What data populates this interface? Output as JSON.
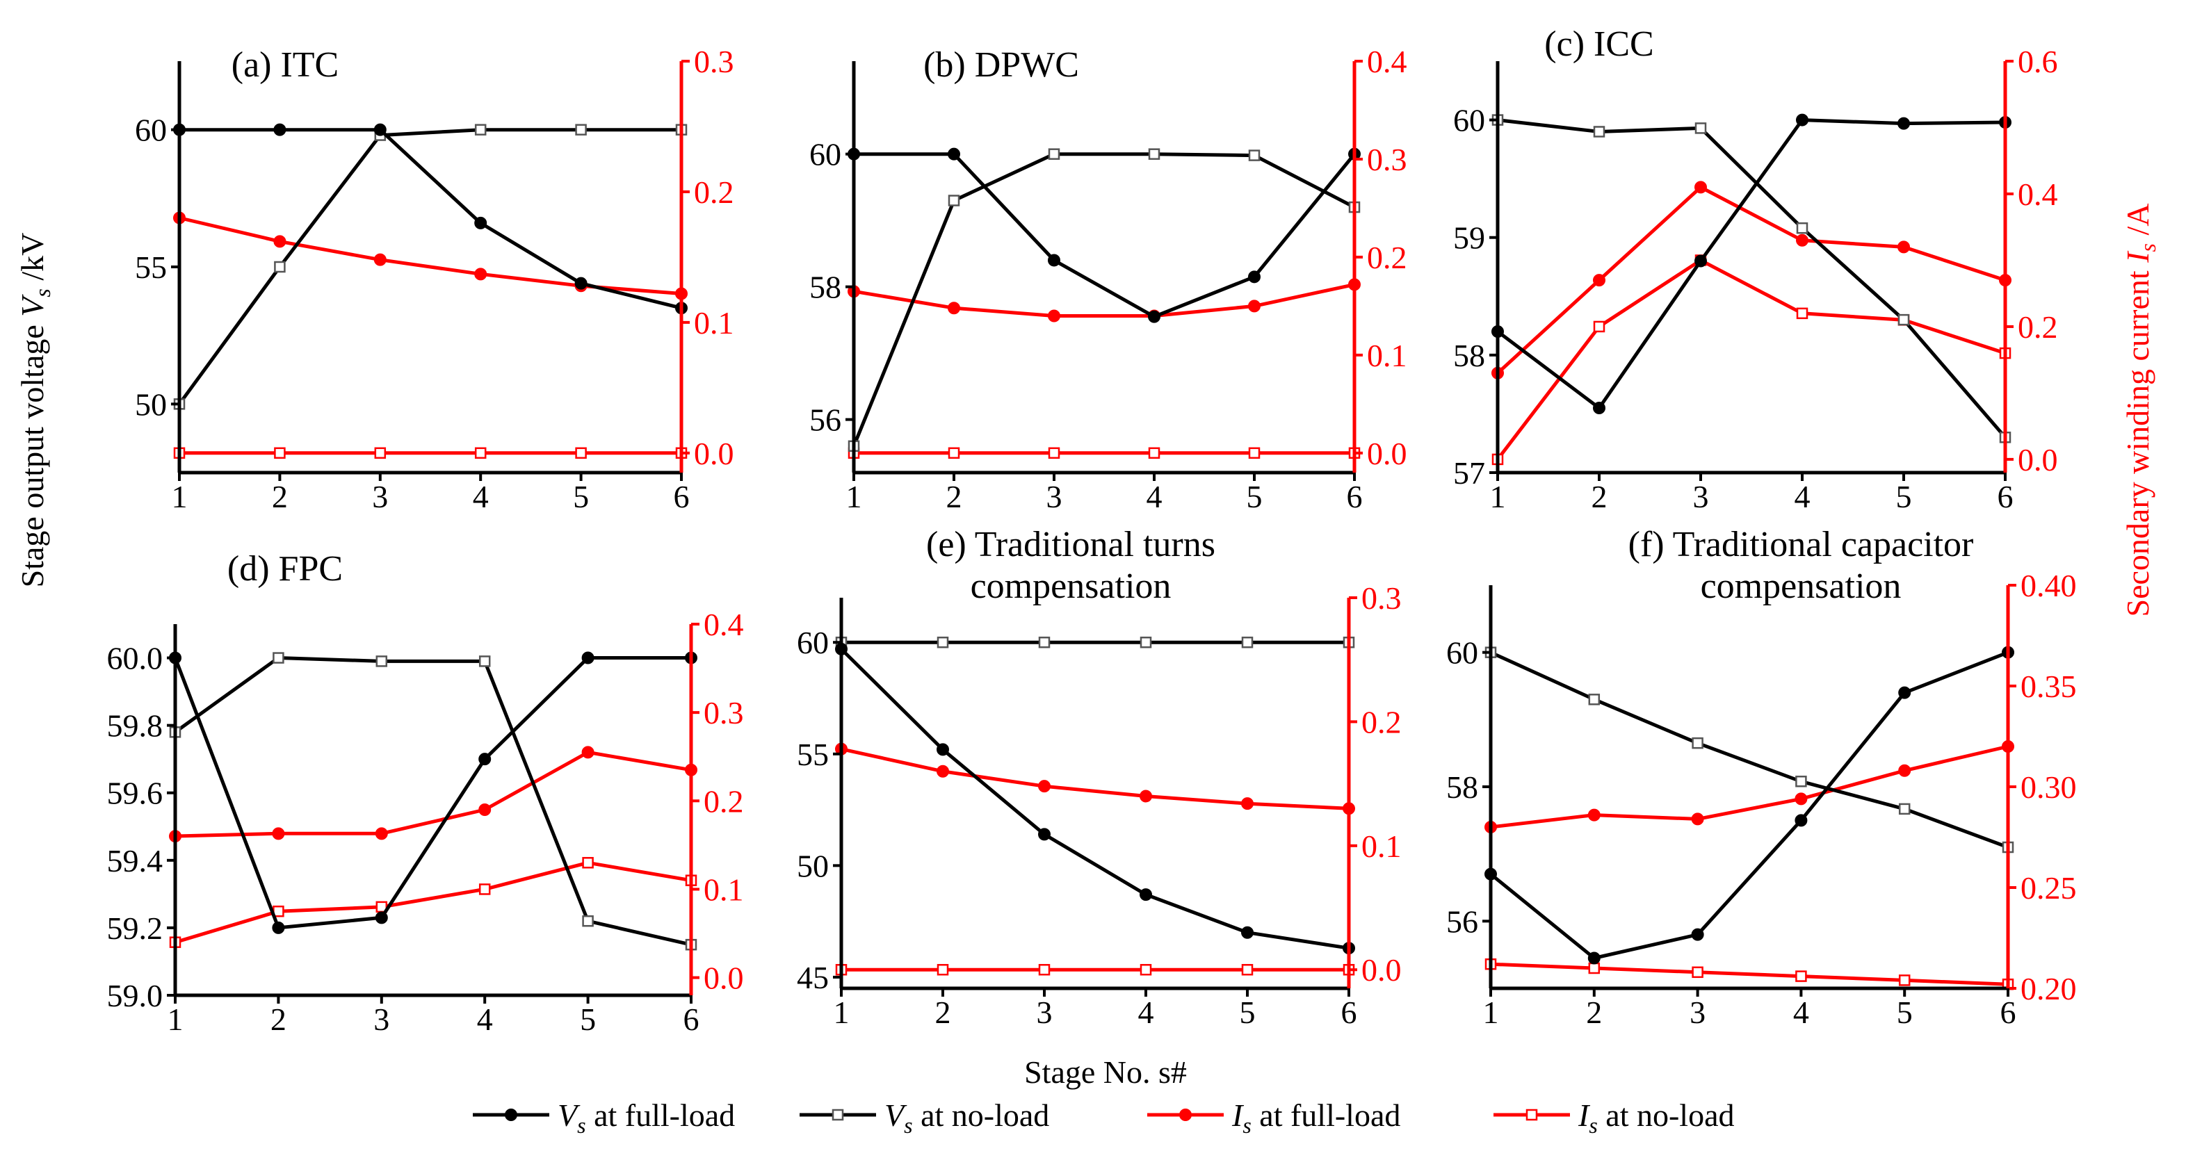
{
  "figure": {
    "global_ylabel_left": "Stage output voltage ",
    "global_ylabel_left_var": "V",
    "global_ylabel_left_sub": "s",
    "global_ylabel_left_unit": " /kV",
    "global_ylabel_right": "Secondary winding current ",
    "global_ylabel_right_var": "I",
    "global_ylabel_right_sub": "s",
    "global_ylabel_right_unit": " /A",
    "global_xlabel": "Stage No. s#",
    "colors": {
      "voltage": "#000000",
      "current": "#ff0000"
    }
  },
  "legend": {
    "placement": "bottom-center",
    "entries": [
      {
        "var": "V",
        "sub": "s",
        "text": " at full-load",
        "color": "#000000",
        "marker": "circle"
      },
      {
        "var": "V",
        "sub": "s",
        "text": " at no-load",
        "color": "#000000",
        "marker": "square"
      },
      {
        "var": "I",
        "sub": "s",
        "text": " at full-load",
        "color": "#ff0000",
        "marker": "circle"
      },
      {
        "var": "I",
        "sub": "s",
        "text": " at no-load",
        "color": "#ff0000",
        "marker": "square"
      }
    ]
  },
  "chart_data": [
    {
      "type": "line",
      "title": [
        "(a) ITC"
      ],
      "x": [
        1,
        2,
        3,
        4,
        5,
        6
      ],
      "ylim_left": [
        47.5,
        62.5
      ],
      "yticks_left": [
        50,
        55,
        60
      ],
      "ytick_labels_left": [
        "50",
        "55",
        "60"
      ],
      "ylim_right": [
        -0.015,
        0.3
      ],
      "yticks_right": [
        0.0,
        0.1,
        0.2,
        0.3
      ],
      "ytick_labels_right": [
        "0.0",
        "0.1",
        "0.2",
        "0.3"
      ],
      "series": [
        {
          "name": "Vs at full-load",
          "axis": "left",
          "marker": "circle",
          "values": [
            60.0,
            60.0,
            60.0,
            56.6,
            54.4,
            53.5
          ]
        },
        {
          "name": "Vs at no-load",
          "axis": "left",
          "marker": "square",
          "values": [
            50.0,
            55.0,
            59.8,
            60.0,
            60.0,
            60.0
          ]
        },
        {
          "name": "Is at full-load",
          "axis": "right",
          "marker": "circle",
          "values": [
            0.18,
            0.162,
            0.148,
            0.137,
            0.128,
            0.122
          ]
        },
        {
          "name": "Is at no-load",
          "axis": "right",
          "marker": "square",
          "values": [
            0.0,
            0.0,
            0.0,
            0.0,
            0.0,
            0.0
          ]
        }
      ]
    },
    {
      "type": "line",
      "title": [
        "(b) DPWC"
      ],
      "x": [
        1,
        2,
        3,
        4,
        5,
        6
      ],
      "ylim_left": [
        55.2,
        61.4
      ],
      "yticks_left": [
        56,
        58,
        60
      ],
      "ytick_labels_left": [
        "56",
        "58",
        "60"
      ],
      "ylim_right": [
        -0.02,
        0.4
      ],
      "yticks_right": [
        0.0,
        0.1,
        0.2,
        0.3,
        0.4
      ],
      "ytick_labels_right": [
        "0.0",
        "0.1",
        "0.2",
        "0.3",
        "0.4"
      ],
      "series": [
        {
          "name": "Vs at full-load",
          "axis": "left",
          "marker": "circle",
          "values": [
            60.0,
            60.0,
            58.4,
            57.55,
            58.15,
            60.0
          ]
        },
        {
          "name": "Vs at no-load",
          "axis": "left",
          "marker": "square",
          "values": [
            55.6,
            59.3,
            60.0,
            60.0,
            59.98,
            59.2
          ]
        },
        {
          "name": "Is at full-load",
          "axis": "right",
          "marker": "circle",
          "values": [
            0.165,
            0.148,
            0.14,
            0.14,
            0.15,
            0.172
          ]
        },
        {
          "name": "Is at no-load",
          "axis": "right",
          "marker": "square",
          "values": [
            0.0,
            0.0,
            0.0,
            0.0,
            0.0,
            0.0
          ]
        }
      ]
    },
    {
      "type": "line",
      "title": [
        "(c) ICC"
      ],
      "x": [
        1,
        2,
        3,
        4,
        5,
        6
      ],
      "ylim_left": [
        57.0,
        60.5
      ],
      "yticks_left": [
        57,
        58,
        59,
        60
      ],
      "ytick_labels_left": [
        "57",
        "58",
        "59",
        "60"
      ],
      "ylim_right": [
        -0.02,
        0.6
      ],
      "yticks_right": [
        0.0,
        0.2,
        0.4,
        0.6
      ],
      "ytick_labels_right": [
        "0.0",
        "0.2",
        "0.4",
        "0.6"
      ],
      "series": [
        {
          "name": "Vs at full-load",
          "axis": "left",
          "marker": "circle",
          "values": [
            58.2,
            57.55,
            58.8,
            60.0,
            59.97,
            59.98
          ]
        },
        {
          "name": "Vs at no-load",
          "axis": "left",
          "marker": "square",
          "values": [
            60.0,
            59.9,
            59.93,
            59.08,
            58.3,
            57.3
          ]
        },
        {
          "name": "Is at full-load",
          "axis": "right",
          "marker": "circle",
          "values": [
            0.13,
            0.27,
            0.41,
            0.33,
            0.32,
            0.27
          ]
        },
        {
          "name": "Is at no-load",
          "axis": "right",
          "marker": "square",
          "values": [
            0.0,
            0.2,
            0.3,
            0.22,
            0.21,
            0.16
          ]
        }
      ]
    },
    {
      "type": "line",
      "title": [
        "(d) FPC"
      ],
      "x": [
        1,
        2,
        3,
        4,
        5,
        6
      ],
      "ylim_left": [
        59.0,
        60.1
      ],
      "yticks_left": [
        59.0,
        59.2,
        59.4,
        59.6,
        59.8,
        60.0
      ],
      "ytick_labels_left": [
        "59.0",
        "59.2",
        "59.4",
        "59.6",
        "59.8",
        "60.0"
      ],
      "ylim_right": [
        -0.02,
        0.4
      ],
      "yticks_right": [
        0.0,
        0.1,
        0.2,
        0.3,
        0.4
      ],
      "ytick_labels_right": [
        "0.0",
        "0.1",
        "0.2",
        "0.3",
        "0.4"
      ],
      "series": [
        {
          "name": "Vs at full-load",
          "axis": "left",
          "marker": "circle",
          "values": [
            60.0,
            59.2,
            59.23,
            59.7,
            60.0,
            60.0
          ]
        },
        {
          "name": "Vs at no-load",
          "axis": "left",
          "marker": "square",
          "values": [
            59.78,
            60.0,
            59.99,
            59.99,
            59.22,
            59.15
          ]
        },
        {
          "name": "Is at full-load",
          "axis": "right",
          "marker": "circle",
          "values": [
            0.16,
            0.163,
            0.163,
            0.19,
            0.255,
            0.235
          ]
        },
        {
          "name": "Is at no-load",
          "axis": "right",
          "marker": "square",
          "values": [
            0.04,
            0.075,
            0.08,
            0.1,
            0.13,
            0.11
          ]
        }
      ]
    },
    {
      "type": "line",
      "title": [
        "(e) Traditional turns",
        "compensation"
      ],
      "x": [
        1,
        2,
        3,
        4,
        5,
        6
      ],
      "ylim_left": [
        44.5,
        62.0
      ],
      "yticks_left": [
        45,
        50,
        55,
        60
      ],
      "ytick_labels_left": [
        "45",
        "50",
        "55",
        "60"
      ],
      "ylim_right": [
        -0.015,
        0.3
      ],
      "yticks_right": [
        0.0,
        0.1,
        0.2,
        0.3
      ],
      "ytick_labels_right": [
        "0.0",
        "0.1",
        "0.2",
        "0.3"
      ],
      "series": [
        {
          "name": "Vs at full-load",
          "axis": "left",
          "marker": "circle",
          "values": [
            59.7,
            55.2,
            51.4,
            48.7,
            47.0,
            46.3
          ]
        },
        {
          "name": "Vs at no-load",
          "axis": "left",
          "marker": "square",
          "values": [
            60.0,
            60.0,
            60.0,
            60.0,
            60.0,
            60.0
          ]
        },
        {
          "name": "Is at full-load",
          "axis": "right",
          "marker": "circle",
          "values": [
            0.178,
            0.16,
            0.148,
            0.14,
            0.134,
            0.13
          ]
        },
        {
          "name": "Is at no-load",
          "axis": "right",
          "marker": "square",
          "values": [
            0.0,
            0.0,
            0.0,
            0.0,
            0.0,
            0.0
          ]
        }
      ]
    },
    {
      "type": "line",
      "title": [
        "(f) Traditional capacitor",
        "compensation"
      ],
      "x": [
        1,
        2,
        3,
        4,
        5,
        6
      ],
      "ylim_left": [
        55.0,
        61.0
      ],
      "yticks_left": [
        56,
        58,
        60
      ],
      "ytick_labels_left": [
        "56",
        "58",
        "60"
      ],
      "ylim_right": [
        0.2,
        0.4
      ],
      "yticks_right": [
        0.2,
        0.25,
        0.3,
        0.35,
        0.4
      ],
      "ytick_labels_right": [
        "0.20",
        "0.25",
        "0.30",
        "0.35",
        "0.40"
      ],
      "series": [
        {
          "name": "Vs at full-load",
          "axis": "left",
          "marker": "circle",
          "values": [
            56.7,
            55.45,
            55.8,
            57.5,
            59.4,
            60.0
          ]
        },
        {
          "name": "Vs at no-load",
          "axis": "left",
          "marker": "square",
          "values": [
            60.0,
            59.3,
            58.65,
            58.08,
            57.67,
            57.1
          ]
        },
        {
          "name": "Is at full-load",
          "axis": "right",
          "marker": "circle",
          "values": [
            0.28,
            0.286,
            0.284,
            0.294,
            0.308,
            0.32
          ]
        },
        {
          "name": "Is at no-load",
          "axis": "right",
          "marker": "square",
          "values": [
            0.212,
            0.21,
            0.208,
            0.206,
            0.204,
            0.202
          ]
        }
      ]
    }
  ]
}
